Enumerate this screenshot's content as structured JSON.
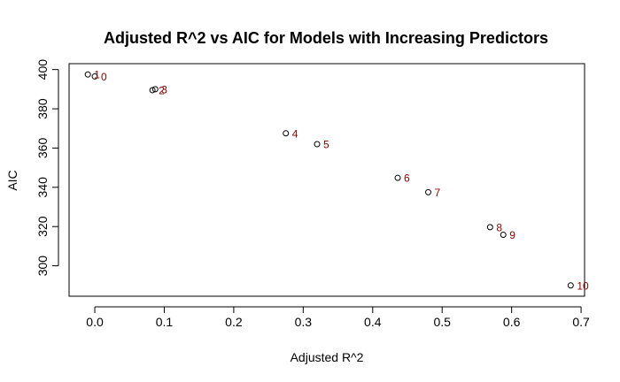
{
  "chart_data": {
    "type": "scatter",
    "title": "Adjusted R^2 vs AIC for Models with Increasing Predictors",
    "xlabel": "Adjusted R^2",
    "ylabel": "AIC",
    "xlim": [
      -0.037,
      0.705
    ],
    "ylim": [
      284.5,
      403
    ],
    "xticks": [
      "0.0",
      "0.1",
      "0.2",
      "0.3",
      "0.4",
      "0.5",
      "0.6",
      "0.7"
    ],
    "xtick_values": [
      0,
      0.1,
      0.2,
      0.3,
      0.4,
      0.5,
      0.6,
      0.7
    ],
    "yticks": [
      "300",
      "320",
      "340",
      "360",
      "380",
      "400"
    ],
    "ytick_values": [
      300,
      320,
      340,
      360,
      380,
      400
    ],
    "grid": false,
    "legend": "none",
    "colors": {
      "points": "#000000",
      "labels": "#8b0000"
    },
    "points": [
      {
        "x": -0.01,
        "y": 397.5,
        "label": "1"
      },
      {
        "x": 0.0,
        "y": 396.5,
        "label": "0"
      },
      {
        "x": 0.083,
        "y": 389.5,
        "label": "2"
      },
      {
        "x": 0.087,
        "y": 390.0,
        "label": "3"
      },
      {
        "x": 0.275,
        "y": 367.5,
        "label": "4"
      },
      {
        "x": 0.32,
        "y": 362.0,
        "label": "5"
      },
      {
        "x": 0.436,
        "y": 344.8,
        "label": "6"
      },
      {
        "x": 0.48,
        "y": 337.5,
        "label": "7"
      },
      {
        "x": 0.569,
        "y": 319.7,
        "label": "8"
      },
      {
        "x": 0.588,
        "y": 315.8,
        "label": "9"
      },
      {
        "x": 0.685,
        "y": 290.0,
        "label": "10"
      }
    ]
  }
}
